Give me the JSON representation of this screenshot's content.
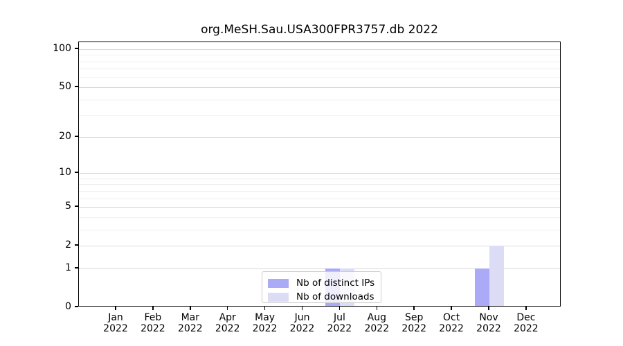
{
  "chart_data": {
    "type": "bar",
    "title": "org.MeSH.Sau.USA300FPR3757.db 2022",
    "categories": [
      "Jan",
      "Feb",
      "Mar",
      "Apr",
      "May",
      "Jun",
      "Jul",
      "Aug",
      "Sep",
      "Oct",
      "Nov",
      "Dec"
    ],
    "category_year": "2022",
    "series": [
      {
        "name": "Nb of distinct IPs",
        "color": "#aaaaf6",
        "values": [
          0,
          0,
          0,
          0,
          0,
          0,
          1,
          0,
          0,
          0,
          1,
          0
        ]
      },
      {
        "name": "Nb of downloads",
        "color": "#dcdcf6",
        "values": [
          0,
          0,
          0,
          0,
          0,
          0,
          1,
          0,
          0,
          0,
          2,
          0
        ]
      }
    ],
    "xlabel": "",
    "ylabel": "",
    "y_axis": {
      "scale": "log1p",
      "lim": [
        0,
        100
      ],
      "major_ticks": [
        0,
        1,
        2,
        5,
        10,
        20,
        50,
        100
      ],
      "minor_ticks": [
        3,
        4,
        6,
        7,
        8,
        9,
        30,
        40,
        60,
        70,
        80,
        90
      ]
    },
    "grid": true,
    "legend": {
      "position": "lower center",
      "entries": [
        "Nb of distinct IPs",
        "Nb of downloads"
      ]
    },
    "colors": {
      "major_grid": "#d8d8d8",
      "minor_grid": "#efefef",
      "spine": "#000000",
      "background": "#ffffff"
    }
  }
}
